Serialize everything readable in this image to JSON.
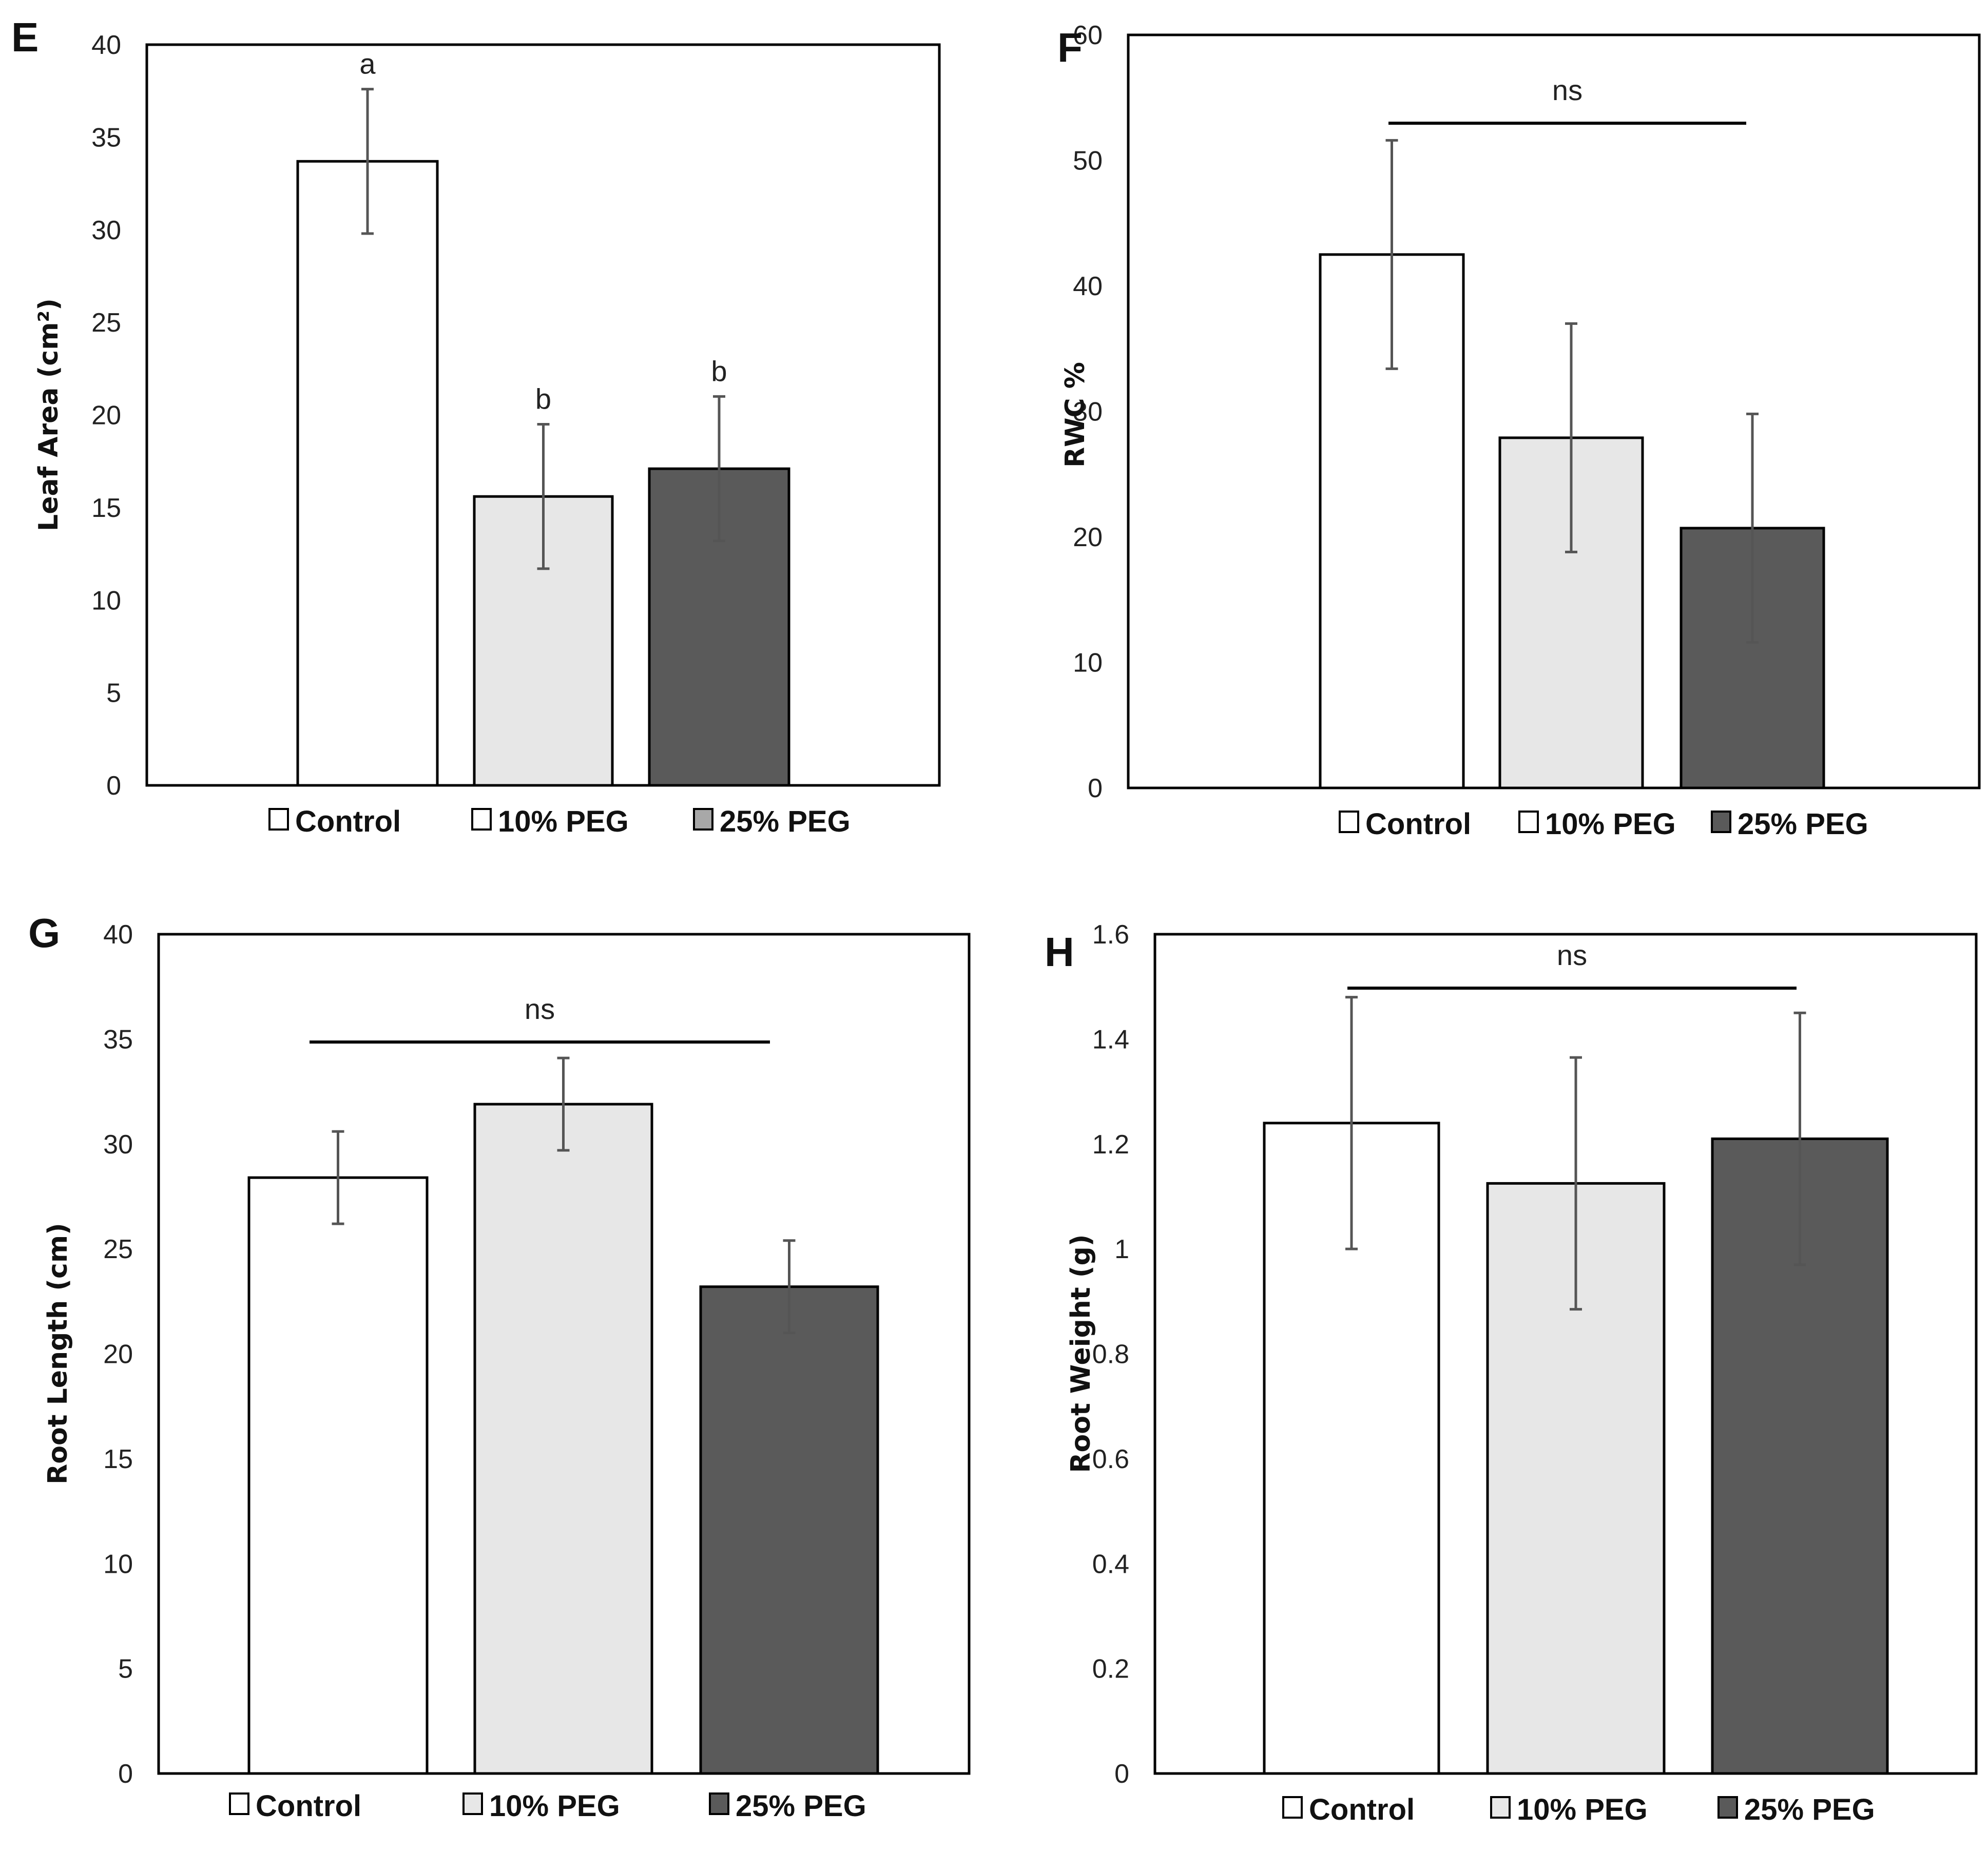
{
  "colors": {
    "control": "#ffffff",
    "peg10": "#e7e7e7",
    "peg25": "#5a5a5a",
    "outline": "#000000",
    "error": "#555555"
  },
  "chart_data": [
    {
      "type": "bar",
      "panel": "E",
      "title": "",
      "xlabel": "",
      "ylabel": "Leaf Area (cm²)",
      "ylim": [
        0,
        40
      ],
      "yticks": [
        "0",
        "5",
        "10",
        "15",
        "20",
        "25",
        "30",
        "35",
        "40"
      ],
      "categories": [
        "Control",
        "10% PEG",
        "25% PEG"
      ],
      "values": [
        33.7,
        15.6,
        17.1
      ],
      "errors": [
        3.9,
        3.9,
        3.9
      ],
      "annotations": [
        "a",
        "b",
        "b"
      ],
      "legend": [
        "Control",
        "10% PEG",
        "25% PEG"
      ],
      "legend_swatch_colors": [
        "#ffffff",
        "#ffffff",
        "#a8a8a8"
      ]
    },
    {
      "type": "bar",
      "panel": "F",
      "title": "",
      "xlabel": "",
      "ylabel": "RWC %",
      "ylim": [
        0,
        60
      ],
      "yticks": [
        "0",
        "10",
        "20",
        "30",
        "40",
        "50",
        "60"
      ],
      "categories": [
        "Control",
        "10% PEG",
        "25% PEG"
      ],
      "values": [
        42.5,
        27.9,
        20.7
      ],
      "errors": [
        9.1,
        9.1,
        9.1
      ],
      "significance": "ns",
      "legend": [
        "Control",
        "10% PEG",
        "25% PEG"
      ],
      "legend_swatch_colors": [
        "#ffffff",
        "#ffffff",
        "#5a5a5a"
      ]
    },
    {
      "type": "bar",
      "panel": "G",
      "title": "",
      "xlabel": "",
      "ylabel": "Root Length (cm)",
      "ylim": [
        0,
        40
      ],
      "yticks": [
        "0",
        "5",
        "10",
        "15",
        "20",
        "25",
        "30",
        "35",
        "40"
      ],
      "categories": [
        "Control",
        "10% PEG",
        "25% PEG"
      ],
      "values": [
        28.4,
        31.9,
        23.2
      ],
      "errors": [
        2.2,
        2.2,
        2.2
      ],
      "significance": "ns",
      "legend": [
        "Control",
        "10% PEG",
        "25% PEG"
      ],
      "legend_swatch_colors": [
        "#ffffff",
        "#e7e7e7",
        "#5a5a5a"
      ]
    },
    {
      "type": "bar",
      "panel": "H",
      "title": "",
      "xlabel": "",
      "ylabel": "Root Weight (g)",
      "ylim": [
        0,
        1.6
      ],
      "yticks": [
        "0",
        "0.2",
        "0.4",
        "0.6",
        "0.8",
        "1",
        "1.2",
        "1.4",
        "1.6"
      ],
      "categories": [
        "Control",
        "10% PEG",
        "25% PEG"
      ],
      "values": [
        1.24,
        1.125,
        1.21
      ],
      "errors": [
        0.24,
        0.24,
        0.24
      ],
      "significance": "ns",
      "legend": [
        "Control",
        "10% PEG",
        "25% PEG"
      ],
      "legend_swatch_colors": [
        "#ffffff",
        "#e7e7e7",
        "#5a5a5a"
      ]
    }
  ]
}
